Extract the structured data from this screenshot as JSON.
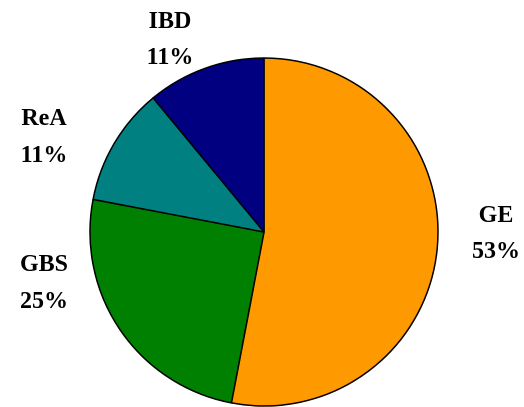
{
  "chart_data": {
    "type": "pie",
    "title": "",
    "slices": [
      {
        "label": "GE",
        "value": 53,
        "display": "53%",
        "color": "#ff9900"
      },
      {
        "label": "GBS",
        "value": 25,
        "display": "25%",
        "color": "#008000"
      },
      {
        "label": "ReA",
        "value": 11,
        "display": "11%",
        "color": "#008080"
      },
      {
        "label": "IBD",
        "value": 11,
        "display": "11%",
        "color": "#000080"
      }
    ],
    "start_angle_deg": 0,
    "direction": "clockwise",
    "legend": "none"
  }
}
